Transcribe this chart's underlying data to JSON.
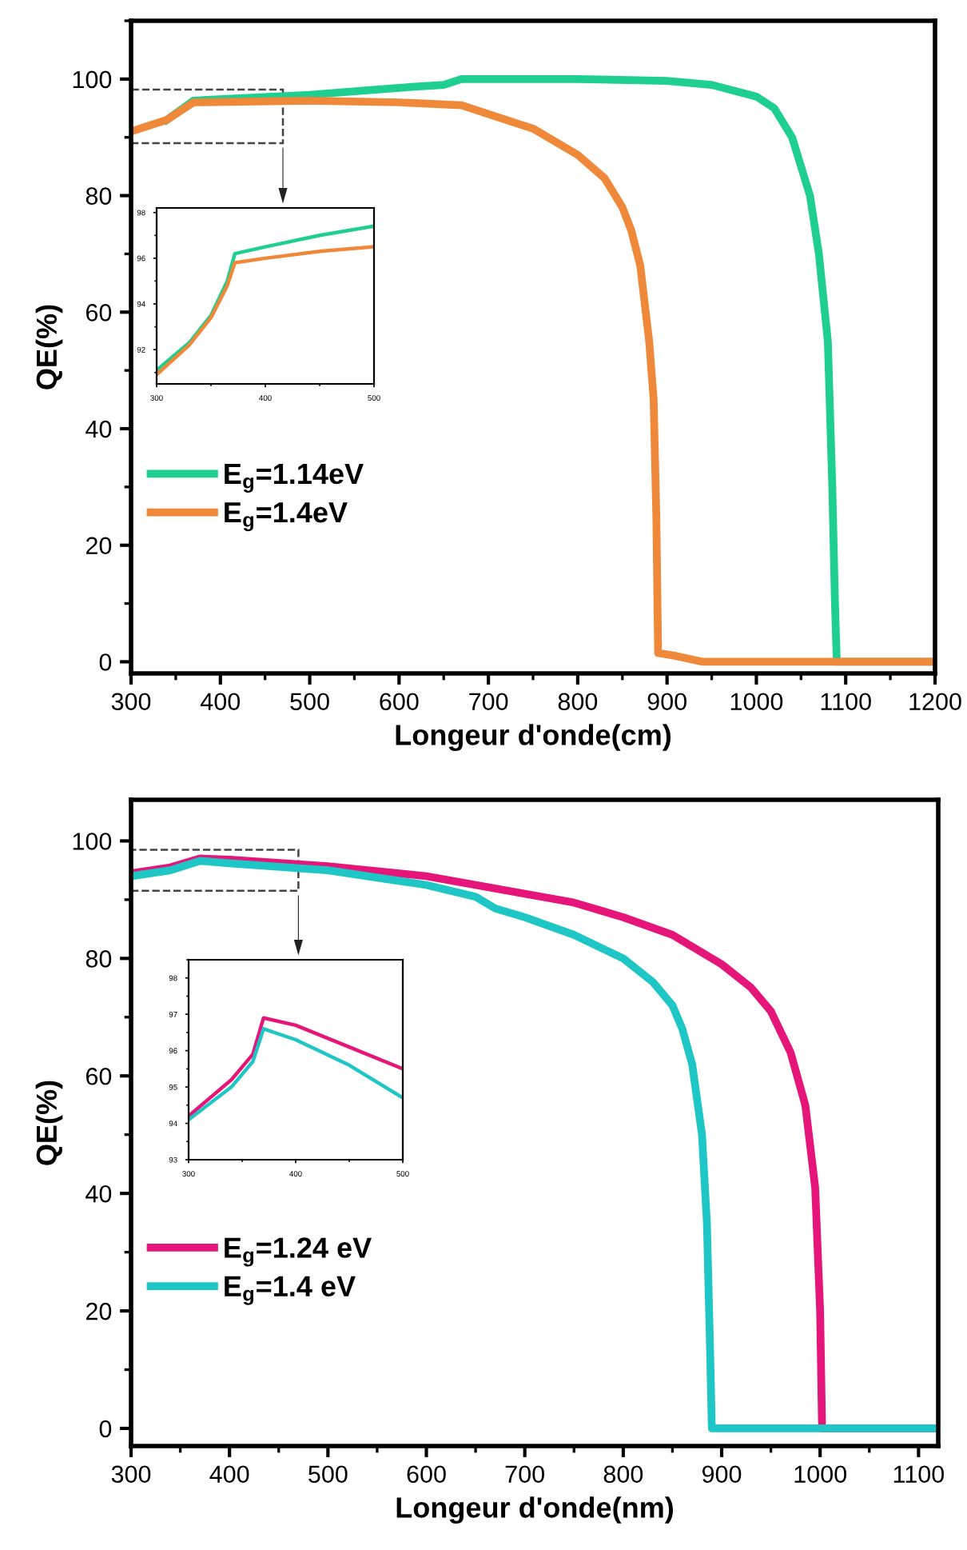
{
  "chart_data": [
    {
      "type": "line",
      "xlabel": "Longeur d'onde(cm)",
      "ylabel": "QE(%)",
      "xlim": [
        300,
        1200
      ],
      "ylim": [
        -2,
        110
      ],
      "xticks": [
        300,
        400,
        500,
        600,
        700,
        800,
        900,
        1000,
        1100,
        1200
      ],
      "yticks": [
        0,
        20,
        40,
        60,
        80,
        100
      ],
      "legend": "left",
      "grid": false,
      "series": [
        {
          "name": "E$_{g}$=1.14eV",
          "color": "#1ecf8f",
          "x": [
            340,
            370,
            500,
            600,
            650,
            670,
            800,
            900,
            950,
            1000,
            1020,
            1040,
            1060,
            1070,
            1080,
            1085,
            1088,
            1090,
            1200
          ],
          "values": [
            93,
            96.3,
            97.3,
            98.5,
            99,
            100,
            100,
            99.7,
            99,
            97,
            95,
            90,
            80,
            70,
            55,
            30,
            10,
            0,
            0
          ]
        },
        {
          "name": "E$_{g}$=1.4eV",
          "color": "#f0883a",
          "x": [
            300,
            340,
            370,
            500,
            600,
            670,
            700,
            750,
            800,
            830,
            850,
            860,
            870,
            880,
            885,
            888,
            890,
            910,
            940,
            1200
          ],
          "values": [
            91,
            93,
            96,
            96.3,
            96,
            95.5,
            94,
            91.5,
            87,
            83,
            78,
            74,
            68,
            55,
            45,
            25,
            1.5,
            1,
            0,
            0
          ]
        }
      ]
    },
    {
      "type": "line",
      "xlim": [
        300,
        500
      ],
      "ylim": [
        90.5,
        98.2
      ],
      "xticks": [
        300,
        400,
        500
      ],
      "yticks": [
        92,
        94,
        96,
        98
      ],
      "series": [
        {
          "color": "#1ecf8f",
          "x": [
            300,
            330,
            350,
            365,
            372,
            400,
            450,
            500
          ],
          "values": [
            91.1,
            92.3,
            93.5,
            95,
            96.2,
            96.5,
            97,
            97.4
          ]
        },
        {
          "color": "#f0883a",
          "x": [
            300,
            330,
            350,
            365,
            372,
            400,
            450,
            500
          ],
          "values": [
            90.9,
            92.2,
            93.4,
            94.8,
            95.8,
            96,
            96.3,
            96.5
          ]
        }
      ]
    },
    {
      "type": "line",
      "xlabel": "Longeur d'onde(nm)",
      "ylabel": "QE(%)",
      "xlim": [
        300,
        1120
      ],
      "ylim": [
        -3,
        107
      ],
      "xticks": [
        300,
        400,
        500,
        600,
        700,
        800,
        900,
        1000,
        1100
      ],
      "yticks": [
        0,
        20,
        40,
        60,
        80,
        100
      ],
      "legend": "left",
      "grid": false,
      "series": [
        {
          "name": "E$_{g}$=1.24 eV",
          "color": "#e5157a",
          "x": [
            300,
            340,
            370,
            400,
            500,
            600,
            650,
            700,
            750,
            800,
            850,
            900,
            930,
            950,
            970,
            985,
            995,
            1000,
            1002,
            1120
          ],
          "values": [
            94.5,
            95.5,
            97,
            96.8,
            95.7,
            94,
            92.5,
            91,
            89.5,
            87,
            84,
            79,
            75,
            71,
            64,
            55,
            41,
            20,
            0,
            0
          ]
        },
        {
          "name": "E$_{g}$=1.4 eV",
          "color": "#1fc6c6",
          "x": [
            300,
            340,
            370,
            400,
            500,
            600,
            650,
            670,
            700,
            750,
            800,
            830,
            850,
            860,
            870,
            880,
            885,
            888,
            890,
            1120
          ],
          "values": [
            94,
            95,
            96.6,
            96.2,
            95,
            92.5,
            90.5,
            88.5,
            87,
            84,
            80,
            76,
            72,
            68,
            62,
            50,
            35,
            15,
            0,
            0
          ]
        }
      ]
    },
    {
      "type": "line",
      "xlim": [
        300,
        500
      ],
      "ylim": [
        93,
        98.5
      ],
      "xticks": [
        300,
        400,
        500
      ],
      "yticks": [
        93,
        94,
        95,
        96,
        97,
        98
      ],
      "series": [
        {
          "color": "#e5157a",
          "x": [
            300,
            340,
            360,
            370,
            400,
            450,
            500
          ],
          "values": [
            94.2,
            95.2,
            95.9,
            96.9,
            96.7,
            96.1,
            95.5
          ]
        },
        {
          "color": "#1fc6c6",
          "x": [
            300,
            340,
            360,
            370,
            400,
            450,
            500
          ],
          "values": [
            94.1,
            95,
            95.7,
            96.6,
            96.3,
            95.6,
            94.7
          ]
        }
      ]
    }
  ]
}
